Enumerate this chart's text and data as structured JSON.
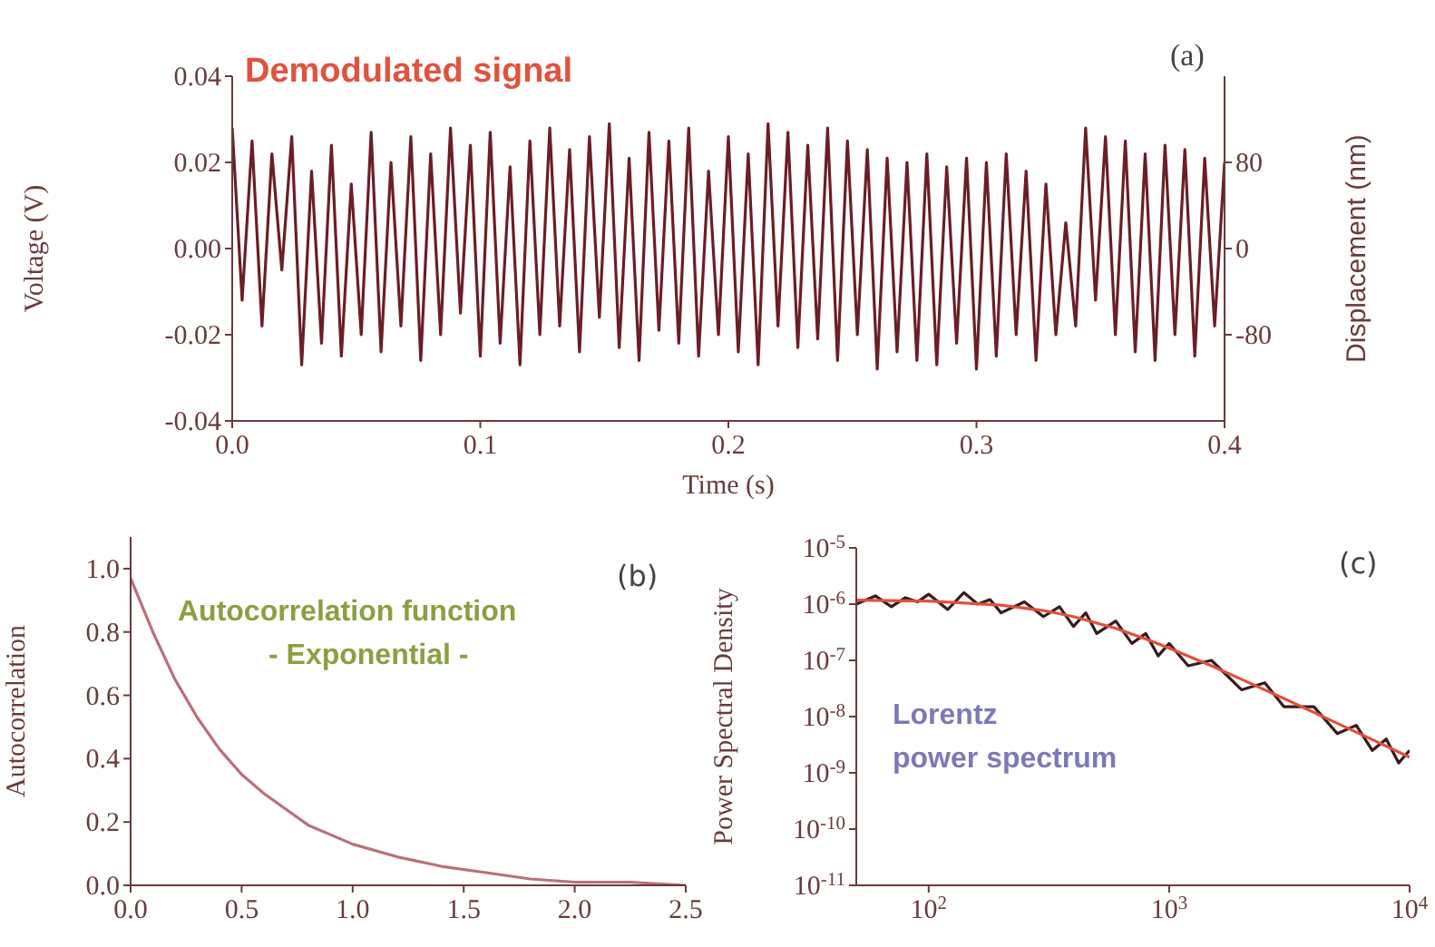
{
  "chart_data": [
    {
      "type": "line",
      "xlabel": "Time (s)",
      "ylabel": "Voltage (V)",
      "y2label": "Displacement (nm)",
      "annotations": [
        "(a)",
        "Demodulated signal"
      ],
      "x": [
        0,
        0.004,
        0.008,
        0.012,
        0.016,
        0.02,
        0.024,
        0.028,
        0.032,
        0.036,
        0.04,
        0.044,
        0.048,
        0.052,
        0.056,
        0.06,
        0.064,
        0.068,
        0.072,
        0.076,
        0.08,
        0.084,
        0.088,
        0.092,
        0.096,
        0.1,
        0.104,
        0.108,
        0.112,
        0.116,
        0.12,
        0.124,
        0.128,
        0.132,
        0.136,
        0.14,
        0.144,
        0.148,
        0.152,
        0.156,
        0.16,
        0.164,
        0.168,
        0.172,
        0.176,
        0.18,
        0.184,
        0.188,
        0.192,
        0.196,
        0.2,
        0.204,
        0.208,
        0.212,
        0.216,
        0.22,
        0.224,
        0.228,
        0.232,
        0.236,
        0.24,
        0.244,
        0.248,
        0.252,
        0.256,
        0.26,
        0.264,
        0.268,
        0.272,
        0.276,
        0.28,
        0.284,
        0.288,
        0.292,
        0.296,
        0.3,
        0.304,
        0.308,
        0.312,
        0.316,
        0.32,
        0.324,
        0.328,
        0.332,
        0.336,
        0.34,
        0.344,
        0.348,
        0.352,
        0.356,
        0.36,
        0.364,
        0.368,
        0.372,
        0.376,
        0.38,
        0.384,
        0.388,
        0.392,
        0.396,
        0.4
      ],
      "series": [
        {
          "color": "#6b1e26",
          "values": [
            0.028,
            -0.012,
            0.025,
            -0.018,
            0.022,
            -0.005,
            0.026,
            -0.027,
            0.018,
            -0.022,
            0.024,
            -0.025,
            0.015,
            -0.02,
            0.027,
            -0.024,
            0.02,
            -0.018,
            0.026,
            -0.026,
            0.022,
            -0.02,
            0.028,
            -0.015,
            0.024,
            -0.025,
            0.027,
            -0.022,
            0.019,
            -0.027,
            0.025,
            -0.02,
            0.028,
            -0.018,
            0.023,
            -0.024,
            0.026,
            -0.016,
            0.029,
            -0.023,
            0.021,
            -0.026,
            0.027,
            -0.019,
            0.025,
            -0.022,
            0.028,
            -0.025,
            0.018,
            -0.02,
            0.026,
            -0.024,
            0.022,
            -0.027,
            0.029,
            -0.018,
            0.027,
            -0.023,
            0.024,
            -0.021,
            0.028,
            -0.026,
            0.025,
            -0.02,
            0.023,
            -0.028,
            0.021,
            -0.024,
            0.02,
            -0.026,
            0.022,
            -0.027,
            0.019,
            -0.022,
            0.021,
            -0.028,
            0.02,
            -0.025,
            0.022,
            -0.02,
            0.018,
            -0.026,
            0.015,
            -0.02,
            0.006,
            -0.018,
            0.028,
            -0.012,
            0.026,
            -0.02,
            0.025,
            -0.024,
            0.022,
            -0.026,
            0.024,
            -0.02,
            0.023,
            -0.025,
            0.021,
            -0.018,
            0.02
          ]
        }
      ],
      "xlim": [
        0,
        0.4
      ],
      "xticks": [
        {
          "value": 0,
          "label": "0.0"
        },
        0.1,
        0.2,
        0.3,
        0.4
      ],
      "ylim": [
        -0.04,
        0.04
      ],
      "yticks": [
        -0.04,
        -0.02,
        {
          "value": 0,
          "label": "0.00"
        },
        0.02,
        0.04
      ],
      "y2lim": [
        -160,
        160
      ],
      "y2ticks": [
        -80,
        0,
        80
      ]
    },
    {
      "type": "line",
      "ylabel": "Autocorrelation",
      "annotations": [
        "(b)",
        "Autocorrelation function",
        "- Exponential -"
      ],
      "x": [
        0,
        0.1,
        0.2,
        0.3,
        0.4,
        0.5,
        0.6,
        0.7,
        0.8,
        0.9,
        1.0,
        1.2,
        1.4,
        1.6,
        1.8,
        2.0,
        2.25,
        2.5
      ],
      "series": [
        {
          "color": "#b8707a",
          "values": [
            0.97,
            0.8,
            0.65,
            0.53,
            0.43,
            0.35,
            0.29,
            0.24,
            0.19,
            0.16,
            0.13,
            0.09,
            0.06,
            0.04,
            0.02,
            0.01,
            0.01,
            0.0
          ]
        }
      ],
      "xlim": [
        0,
        2.5
      ],
      "xticks": [
        {
          "value": 0,
          "label": "0.0"
        },
        0.5,
        {
          "value": 1,
          "label": "1.0"
        },
        1.5,
        {
          "value": 2,
          "label": "2.0"
        },
        2.5
      ],
      "ylim": [
        0,
        1.1
      ],
      "yticks": [
        {
          "value": 0,
          "label": "0.0"
        },
        0.2,
        0.4,
        0.6,
        0.8,
        {
          "value": 1,
          "label": "1.0"
        }
      ]
    },
    {
      "type": "line",
      "ylabel": "Power Spectral Density",
      "annotations": [
        "(c)",
        "Lorentz",
        "power spectrum"
      ],
      "log": "xy",
      "series": [
        {
          "color": "#3a1a1a",
          "x": [
            50,
            60,
            70,
            80,
            90,
            100,
            120,
            140,
            160,
            180,
            200,
            250,
            300,
            350,
            400,
            450,
            500,
            600,
            700,
            800,
            900,
            1000,
            1200,
            1500,
            2000,
            2500,
            3000,
            4000,
            5000,
            6000,
            7000,
            8000,
            9000,
            10000
          ],
          "values": [
            1e-06,
            1.4e-06,
            9e-07,
            1.3e-06,
            1.1e-06,
            1.5e-06,
            8e-07,
            1.6e-06,
            1e-06,
            1.2e-06,
            7e-07,
            1.1e-06,
            6e-07,
            9e-07,
            4e-07,
            7e-07,
            3e-07,
            5e-07,
            2e-07,
            3e-07,
            1.2e-07,
            2e-07,
            8e-08,
            1e-07,
            3e-08,
            4e-08,
            1.5e-08,
            1.5e-08,
            5e-09,
            7e-09,
            2.5e-09,
            4e-09,
            1.5e-09,
            2.5e-09
          ]
        },
        {
          "color": "#e0503c",
          "x": [
            50,
            100,
            200,
            300,
            400,
            600,
            800,
            1000,
            1500,
            2000,
            3000,
            5000,
            7000,
            10000
          ],
          "values": [
            1.18e-06,
            1.13e-06,
            9.6e-07,
            7.7e-07,
            6e-07,
            3.7e-07,
            2.4e-07,
            1.65e-07,
            8e-08,
            4.6e-08,
            2.1e-08,
            7.6e-09,
            3.9e-09,
            1.9e-09
          ]
        }
      ],
      "xlim": [
        50,
        10000
      ],
      "xticks": [
        {
          "value": 100,
          "label": "10$^{2}$"
        },
        {
          "value": 1000,
          "label": "10$^{3}$"
        },
        {
          "value": 10000,
          "label": "10$^{4}$"
        }
      ],
      "ylim": [
        1e-11,
        1e-05
      ],
      "yticks": [
        {
          "value": 1e-11,
          "label": "10$^{-11}$"
        },
        {
          "value": 1e-10,
          "label": "10$^{-10}$"
        },
        {
          "value": 1e-09,
          "label": "10$^{-9}$"
        },
        {
          "value": 1e-08,
          "label": "10$^{-8}$"
        },
        {
          "value": 1e-07,
          "label": "10$^{-7}$"
        },
        {
          "value": 1e-06,
          "label": "10$^{-6}$"
        },
        {
          "value": 1e-05,
          "label": "10$^{-5}$"
        }
      ]
    }
  ]
}
